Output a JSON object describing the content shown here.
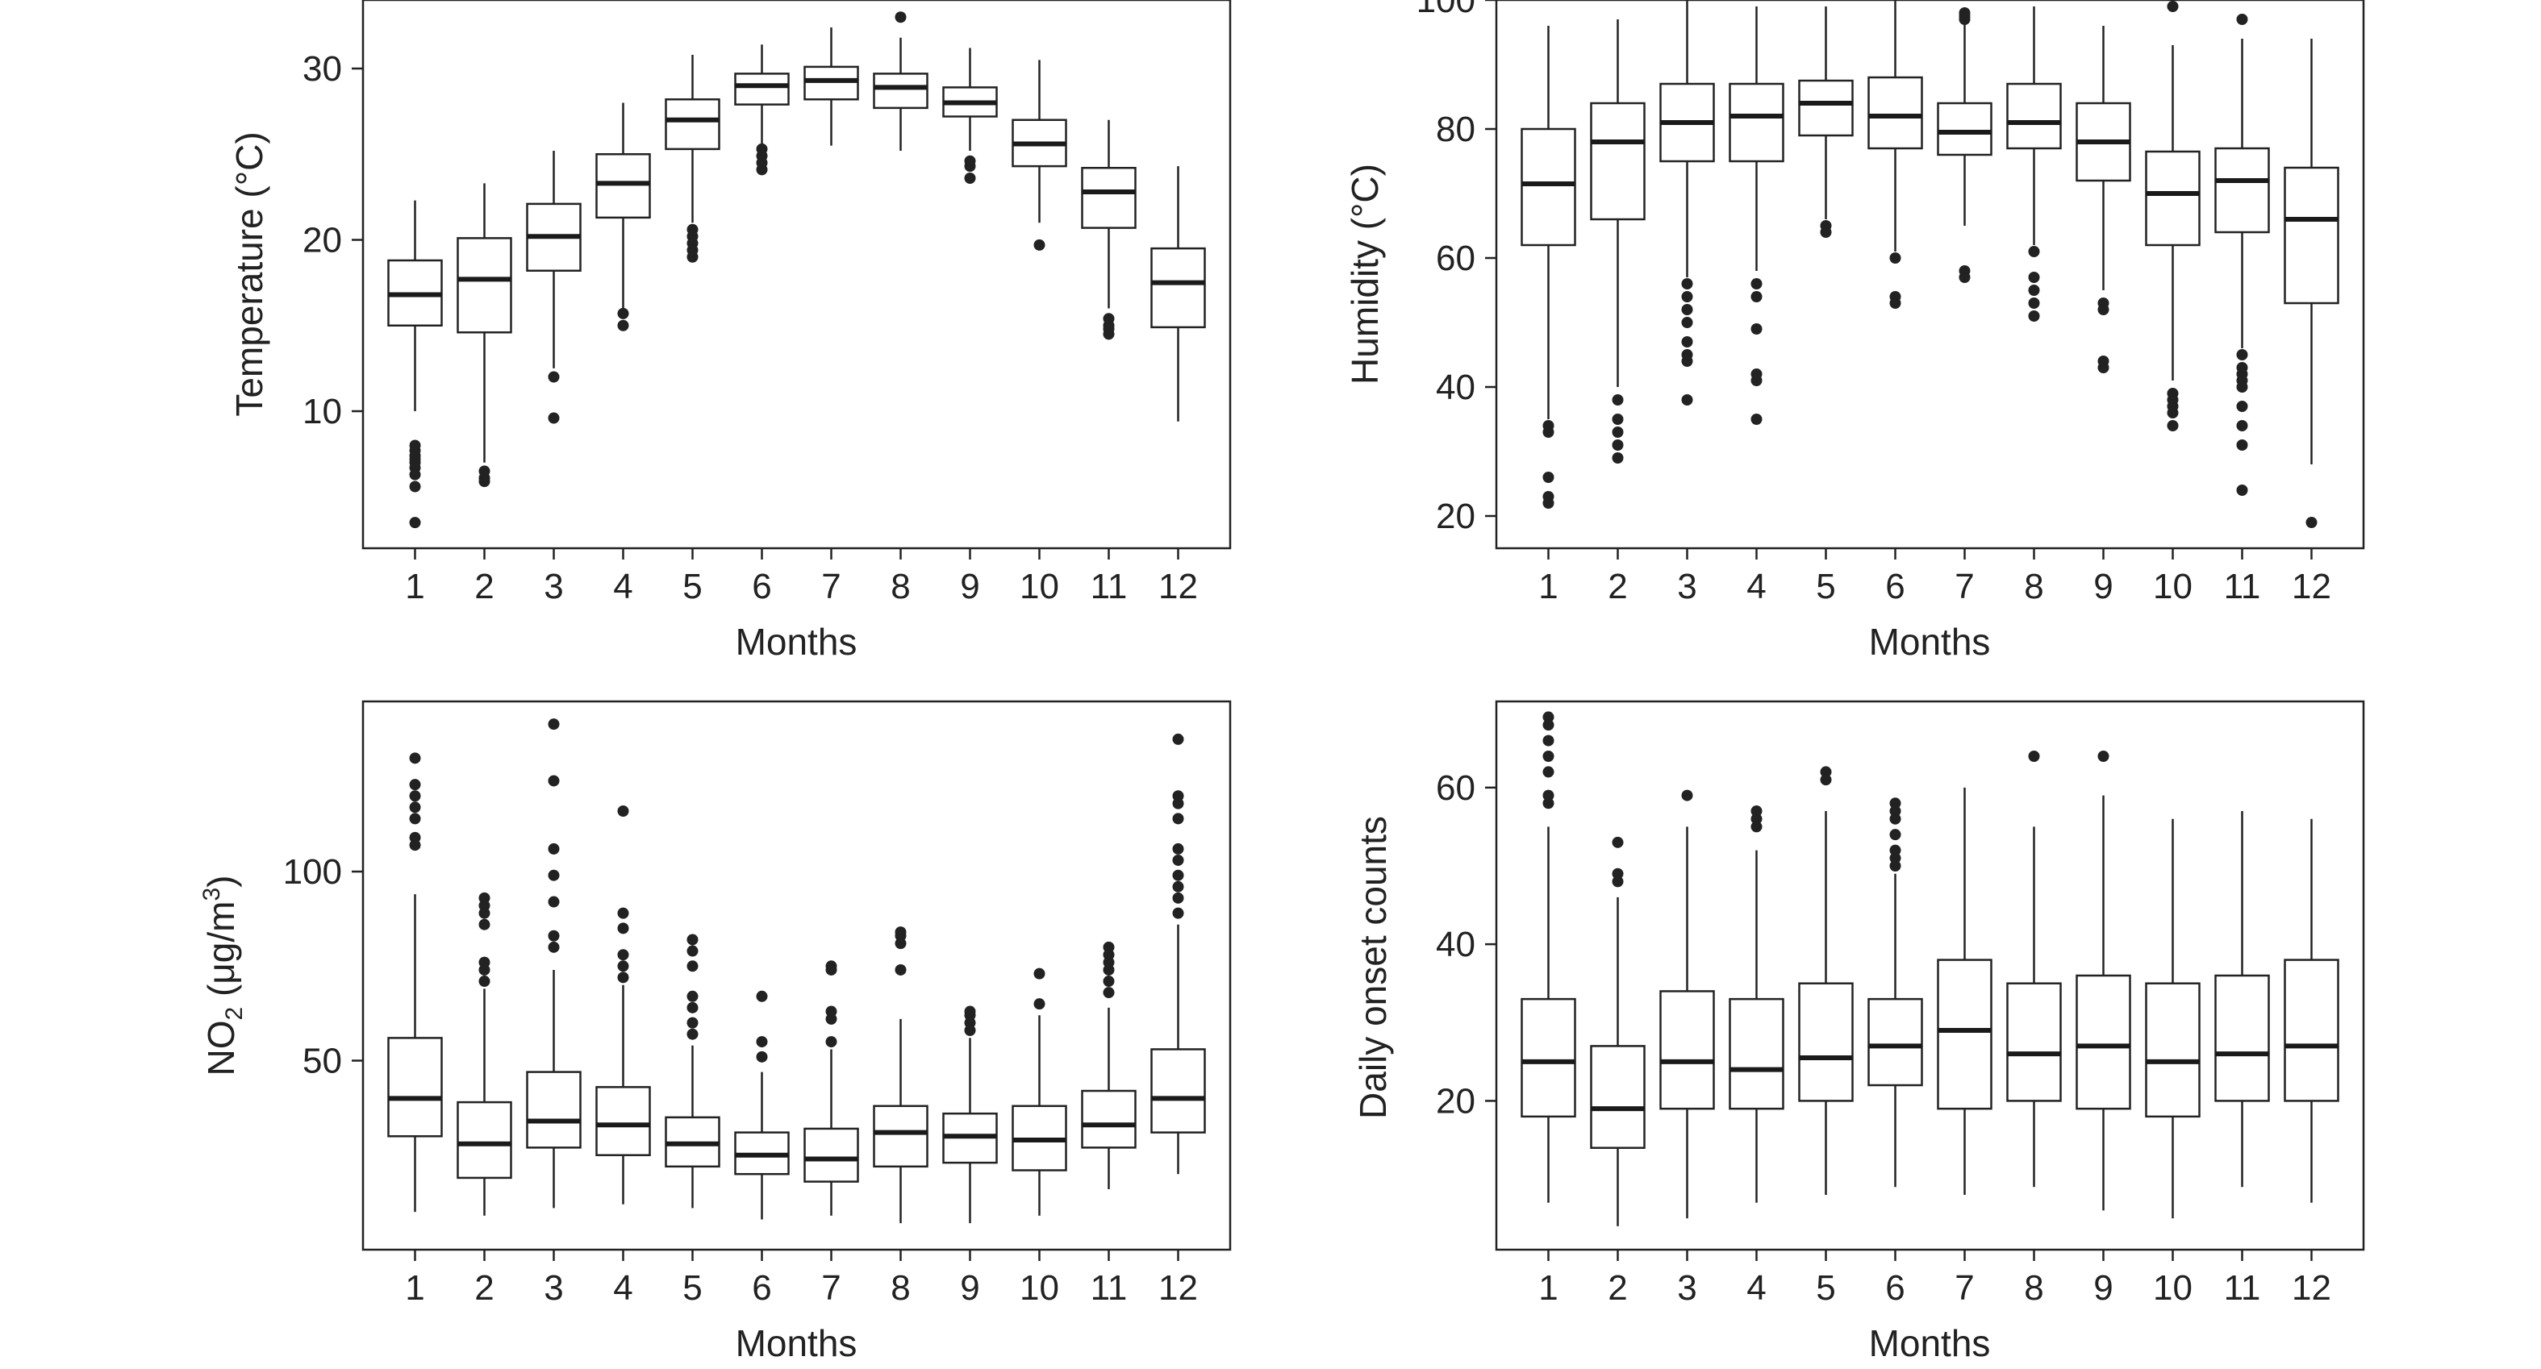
{
  "chart_data": [
    {
      "type": "box",
      "xlabel": "Months",
      "ylabel": "Temperature (°C)",
      "ylim": [
        2,
        34
      ],
      "yticks": [
        10,
        20,
        30
      ],
      "categories": [
        "1",
        "2",
        "3",
        "4",
        "5",
        "6",
        "7",
        "8",
        "9",
        "10",
        "11",
        "12"
      ],
      "boxes": [
        {
          "low": 10.0,
          "q1": 15.0,
          "median": 16.8,
          "q3": 18.8,
          "high": 22.3,
          "outliers": [
            8.0,
            7.7,
            7.4,
            7.2,
            7.0,
            6.7,
            6.3,
            5.6,
            3.5
          ]
        },
        {
          "low": 7.0,
          "q1": 14.6,
          "median": 17.7,
          "q3": 20.1,
          "high": 23.3,
          "outliers": [
            6.5,
            6.1,
            5.9
          ]
        },
        {
          "low": 12.5,
          "q1": 18.2,
          "median": 20.2,
          "q3": 22.1,
          "high": 25.2,
          "outliers": [
            12.0,
            9.6
          ]
        },
        {
          "low": 16.0,
          "q1": 21.3,
          "median": 23.3,
          "q3": 25.0,
          "high": 28.0,
          "outliers": [
            15.7,
            15.0
          ]
        },
        {
          "low": 21.0,
          "q1": 25.3,
          "median": 27.0,
          "q3": 28.2,
          "high": 30.8,
          "outliers": [
            20.6,
            20.2,
            19.8,
            19.4,
            19.0
          ]
        },
        {
          "low": 25.6,
          "q1": 27.9,
          "median": 29.0,
          "q3": 29.7,
          "high": 31.4,
          "outliers": [
            25.3,
            24.9,
            24.5,
            24.1
          ]
        },
        {
          "low": 25.5,
          "q1": 28.2,
          "median": 29.3,
          "q3": 30.1,
          "high": 32.4,
          "outliers": []
        },
        {
          "low": 25.2,
          "q1": 27.7,
          "median": 28.9,
          "q3": 29.7,
          "high": 31.8,
          "outliers": [
            33.0
          ]
        },
        {
          "low": 25.2,
          "q1": 27.2,
          "median": 28.0,
          "q3": 28.9,
          "high": 31.2,
          "outliers": [
            24.6,
            24.3,
            23.6
          ]
        },
        {
          "low": 21.0,
          "q1": 24.3,
          "median": 25.6,
          "q3": 27.0,
          "high": 30.5,
          "outliers": [
            19.7
          ]
        },
        {
          "low": 16.0,
          "q1": 20.7,
          "median": 22.8,
          "q3": 24.2,
          "high": 27.0,
          "outliers": [
            15.4,
            15.0,
            14.8,
            14.5
          ]
        },
        {
          "low": 9.4,
          "q1": 14.9,
          "median": 17.5,
          "q3": 19.5,
          "high": 24.3,
          "outliers": []
        }
      ]
    },
    {
      "type": "box",
      "xlabel": "Months",
      "ylabel": "Humidity (°C)",
      "ylim": [
        15,
        100
      ],
      "yticks": [
        20,
        40,
        60,
        80,
        100
      ],
      "categories": [
        "1",
        "2",
        "3",
        "4",
        "5",
        "6",
        "7",
        "8",
        "9",
        "10",
        "11",
        "12"
      ],
      "boxes": [
        {
          "low": 35.0,
          "q1": 62.0,
          "median": 71.5,
          "q3": 80.0,
          "high": 96.0,
          "outliers": [
            34.0,
            33.0,
            26.0,
            23.0,
            22.0
          ]
        },
        {
          "low": 40.0,
          "q1": 66.0,
          "median": 78.0,
          "q3": 84.0,
          "high": 97.0,
          "outliers": [
            38.0,
            35.0,
            33.0,
            31.0,
            29.0
          ]
        },
        {
          "low": 57.0,
          "q1": 75.0,
          "median": 81.0,
          "q3": 87.0,
          "high": 100.0,
          "outliers": [
            56.0,
            54.0,
            52.0,
            50.0,
            47.0,
            45.0,
            44.0,
            38.0
          ]
        },
        {
          "low": 58.0,
          "q1": 75.0,
          "median": 82.0,
          "q3": 87.0,
          "high": 99.0,
          "outliers": [
            56.0,
            54.0,
            49.0,
            42.0,
            41.0,
            35.0
          ]
        },
        {
          "low": 66.0,
          "q1": 79.0,
          "median": 84.0,
          "q3": 87.5,
          "high": 99.0,
          "outliers": [
            65.0,
            64.0
          ]
        },
        {
          "low": 61.0,
          "q1": 77.0,
          "median": 82.0,
          "q3": 88.0,
          "high": 100.0,
          "outliers": [
            60.0,
            54.0,
            53.0
          ]
        },
        {
          "low": 65.0,
          "q1": 76.0,
          "median": 79.5,
          "q3": 84.0,
          "high": 96.5,
          "outliers": [
            98.0,
            97.5,
            97.0,
            58.0,
            57.0
          ]
        },
        {
          "low": 62.0,
          "q1": 77.0,
          "median": 81.0,
          "q3": 87.0,
          "high": 99.0,
          "outliers": [
            61.0,
            57.0,
            55.0,
            53.0,
            51.0
          ]
        },
        {
          "low": 55.0,
          "q1": 72.0,
          "median": 78.0,
          "q3": 84.0,
          "high": 96.0,
          "outliers": [
            53.0,
            52.0,
            44.0,
            43.0
          ]
        },
        {
          "low": 41.0,
          "q1": 62.0,
          "median": 70.0,
          "q3": 76.5,
          "high": 93.0,
          "outliers": [
            99.0,
            39.0,
            38.0,
            37.0,
            36.0,
            34.0
          ]
        },
        {
          "low": 46.0,
          "q1": 64.0,
          "median": 72.0,
          "q3": 77.0,
          "high": 94.0,
          "outliers": [
            97.0,
            45.0,
            43.0,
            42.0,
            41.0,
            40.0,
            37.0,
            34.0,
            31.0,
            24.0
          ]
        },
        {
          "low": 28.0,
          "q1": 53.0,
          "median": 66.0,
          "q3": 74.0,
          "high": 94.0,
          "outliers": [
            19.0
          ]
        }
      ]
    },
    {
      "type": "box",
      "xlabel": "Months",
      "ylabel_main": "NO",
      "ylabel_sub": "2",
      "ylabel_rest": " (μg/m",
      "ylabel_sup": "3",
      "ylabel_end": ")",
      "ylim": [
        0,
        145
      ],
      "yticks": [
        50,
        100
      ],
      "categories": [
        "1",
        "2",
        "3",
        "4",
        "5",
        "6",
        "7",
        "8",
        "9",
        "10",
        "11",
        "12"
      ],
      "boxes": [
        {
          "low": 10.0,
          "q1": 30.0,
          "median": 40.0,
          "q3": 56.0,
          "high": 94.0,
          "outliers": [
            107.0,
            109.0,
            114.0,
            117.0,
            120.0,
            123.0,
            130.0
          ]
        },
        {
          "low": 9.0,
          "q1": 19.0,
          "median": 28.0,
          "q3": 39.0,
          "high": 69.0,
          "outliers": [
            71.0,
            74.0,
            76.0,
            86.0,
            89.0,
            91.0,
            93.0
          ]
        },
        {
          "low": 11.0,
          "q1": 27.0,
          "median": 34.0,
          "q3": 47.0,
          "high": 74.0,
          "outliers": [
            80.0,
            83.0,
            92.0,
            99.0,
            106.0,
            124.0,
            139.0
          ]
        },
        {
          "low": 12.0,
          "q1": 25.0,
          "median": 33.0,
          "q3": 43.0,
          "high": 70.0,
          "outliers": [
            72.0,
            75.0,
            78.0,
            85.0,
            89.0,
            116.0
          ]
        },
        {
          "low": 11.0,
          "q1": 22.0,
          "median": 28.0,
          "q3": 35.0,
          "high": 54.0,
          "outliers": [
            57.0,
            60.0,
            64.0,
            67.0,
            75.0,
            79.0,
            82.0
          ]
        },
        {
          "low": 8.0,
          "q1": 20.0,
          "median": 25.0,
          "q3": 31.0,
          "high": 47.0,
          "outliers": [
            51.0,
            55.0,
            67.0
          ]
        },
        {
          "low": 9.0,
          "q1": 18.0,
          "median": 24.0,
          "q3": 32.0,
          "high": 53.0,
          "outliers": [
            55.0,
            61.0,
            63.0,
            74.0,
            75.0
          ]
        },
        {
          "low": 7.0,
          "q1": 22.0,
          "median": 31.0,
          "q3": 38.0,
          "high": 61.0,
          "outliers": [
            74.0,
            81.0,
            83.0,
            84.0
          ]
        },
        {
          "low": 7.0,
          "q1": 23.0,
          "median": 30.0,
          "q3": 36.0,
          "high": 56.0,
          "outliers": [
            58.0,
            60.0,
            62.0,
            63.0
          ]
        },
        {
          "low": 9.0,
          "q1": 21.0,
          "median": 29.0,
          "q3": 38.0,
          "high": 62.0,
          "outliers": [
            65.0,
            73.0
          ]
        },
        {
          "low": 16.0,
          "q1": 27.0,
          "median": 33.0,
          "q3": 42.0,
          "high": 64.0,
          "outliers": [
            68.0,
            71.0,
            74.0,
            76.0,
            78.0,
            80.0
          ]
        },
        {
          "low": 20.0,
          "q1": 31.0,
          "median": 40.0,
          "q3": 53.0,
          "high": 86.0,
          "outliers": [
            89.0,
            93.0,
            96.0,
            99.0,
            103.0,
            106.0,
            114.0,
            118.0,
            120.0,
            135.0
          ]
        }
      ]
    },
    {
      "type": "box",
      "xlabel": "Months",
      "ylabel": "Daily onset counts",
      "ylim": [
        1,
        71
      ],
      "yticks": [
        20,
        40,
        60
      ],
      "categories": [
        "1",
        "2",
        "3",
        "4",
        "5",
        "6",
        "7",
        "8",
        "9",
        "10",
        "11",
        "12"
      ],
      "boxes": [
        {
          "low": 7.0,
          "q1": 18.0,
          "median": 25.0,
          "q3": 33.0,
          "high": 55.0,
          "outliers": [
            58.0,
            59.0,
            62.0,
            64.0,
            66.0,
            68.0,
            69.0
          ]
        },
        {
          "low": 4.0,
          "q1": 14.0,
          "median": 19.0,
          "q3": 27.0,
          "high": 46.0,
          "outliers": [
            48.0,
            49.0,
            53.0
          ]
        },
        {
          "low": 5.0,
          "q1": 19.0,
          "median": 25.0,
          "q3": 34.0,
          "high": 55.0,
          "outliers": [
            59.0
          ]
        },
        {
          "low": 7.0,
          "q1": 19.0,
          "median": 24.0,
          "q3": 33.0,
          "high": 52.0,
          "outliers": [
            55.0,
            56.0,
            57.0
          ]
        },
        {
          "low": 8.0,
          "q1": 20.0,
          "median": 25.5,
          "q3": 35.0,
          "high": 57.0,
          "outliers": [
            61.0,
            62.0
          ]
        },
        {
          "low": 9.0,
          "q1": 22.0,
          "median": 27.0,
          "q3": 33.0,
          "high": 49.0,
          "outliers": [
            50.0,
            51.0,
            52.0,
            54.0,
            56.0,
            57.0,
            58.0
          ]
        },
        {
          "low": 8.0,
          "q1": 19.0,
          "median": 29.0,
          "q3": 38.0,
          "high": 60.0,
          "outliers": []
        },
        {
          "low": 9.0,
          "q1": 20.0,
          "median": 26.0,
          "q3": 35.0,
          "high": 55.0,
          "outliers": [
            64.0
          ]
        },
        {
          "low": 6.0,
          "q1": 19.0,
          "median": 27.0,
          "q3": 36.0,
          "high": 59.0,
          "outliers": [
            64.0
          ]
        },
        {
          "low": 5.0,
          "q1": 18.0,
          "median": 25.0,
          "q3": 35.0,
          "high": 56.0,
          "outliers": []
        },
        {
          "low": 9.0,
          "q1": 20.0,
          "median": 26.0,
          "q3": 36.0,
          "high": 57.0,
          "outliers": []
        },
        {
          "low": 7.0,
          "q1": 20.0,
          "median": 27.0,
          "q3": 38.0,
          "high": 56.0,
          "outliers": []
        }
      ]
    }
  ]
}
